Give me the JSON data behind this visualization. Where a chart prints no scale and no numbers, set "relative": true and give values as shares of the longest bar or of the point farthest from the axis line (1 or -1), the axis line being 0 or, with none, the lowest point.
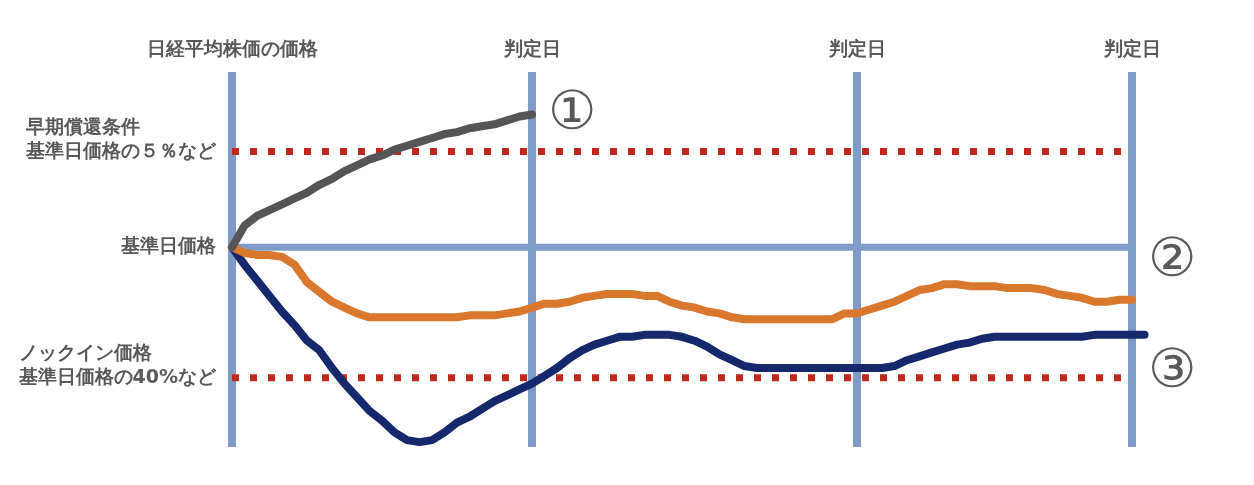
{
  "chart_data": {
    "type": "line",
    "relative": true,
    "ylabel": "日経平均株価の価格",
    "legend": false,
    "marker": "none",
    "grid": "x",
    "categories": [
      null,
      null,
      null,
      null,
      null,
      null,
      null,
      null,
      null,
      null,
      null,
      null,
      null,
      null,
      null,
      null,
      null,
      null,
      null,
      null,
      null,
      null,
      null,
      null,
      "判定日",
      null,
      null,
      null,
      null,
      null,
      null,
      null,
      null,
      null,
      null,
      null,
      null,
      null,
      null,
      null,
      null,
      null,
      null,
      null,
      null,
      null,
      null,
      null,
      null,
      null,
      "判定日",
      null,
      null,
      null,
      null,
      null,
      null,
      null,
      null,
      null,
      null,
      null,
      null,
      null,
      null,
      null,
      null,
      null,
      null,
      null,
      null,
      null,
      "判定日",
      null
    ],
    "series": [
      {
        "name": "①",
        "color": "#555555",
        "values": [
          0,
          0.11,
          0.16,
          0.19,
          0.22,
          0.25,
          0.28,
          0.32,
          0.35,
          0.39,
          0.42,
          0.45,
          0.47,
          0.5,
          0.52,
          0.54,
          0.56,
          0.58,
          0.59,
          0.61,
          0.62,
          0.63,
          0.65,
          0.67,
          0.68,
          null,
          null,
          null,
          null,
          null,
          null,
          null,
          null,
          null,
          null,
          null,
          null,
          null,
          null,
          null,
          null,
          null,
          null,
          null,
          null,
          null,
          null,
          null,
          null,
          null,
          null,
          null,
          null,
          null,
          null,
          null,
          null,
          null,
          null,
          null,
          null,
          null,
          null,
          null,
          null,
          null,
          null,
          null,
          null,
          null,
          null,
          null,
          null,
          null
        ]
      },
      {
        "name": "②",
        "color": "#d9782d",
        "values": [
          0,
          -0.03,
          -0.04,
          -0.04,
          -0.05,
          -0.09,
          -0.18,
          -0.23,
          -0.28,
          -0.31,
          -0.34,
          -0.36,
          -0.36,
          -0.36,
          -0.36,
          -0.36,
          -0.36,
          -0.36,
          -0.36,
          -0.35,
          -0.35,
          -0.35,
          -0.34,
          -0.33,
          -0.31,
          -0.29,
          -0.29,
          -0.28,
          -0.26,
          -0.25,
          -0.24,
          -0.24,
          -0.24,
          -0.25,
          -0.25,
          -0.28,
          -0.3,
          -0.31,
          -0.33,
          -0.34,
          -0.36,
          -0.37,
          -0.37,
          -0.37,
          -0.37,
          -0.37,
          -0.37,
          -0.37,
          -0.37,
          -0.34,
          -0.34,
          -0.32,
          -0.3,
          -0.28,
          -0.25,
          -0.22,
          -0.21,
          -0.19,
          -0.19,
          -0.2,
          -0.2,
          -0.2,
          -0.21,
          -0.21,
          -0.21,
          -0.22,
          -0.24,
          -0.25,
          -0.26,
          -0.28,
          -0.28,
          -0.27,
          -0.27,
          null
        ]
      },
      {
        "name": "③",
        "color": "#14286b",
        "values": [
          0,
          -0.09,
          -0.17,
          -0.25,
          -0.33,
          -0.4,
          -0.48,
          -0.53,
          -0.62,
          -0.7,
          -0.77,
          -0.84,
          -0.89,
          -0.95,
          -0.99,
          -1,
          -0.99,
          -0.95,
          -0.9,
          -0.87,
          -0.83,
          -0.79,
          -0.76,
          -0.73,
          -0.7,
          -0.66,
          -0.62,
          -0.57,
          -0.53,
          -0.5,
          -0.48,
          -0.46,
          -0.46,
          -0.45,
          -0.45,
          -0.45,
          -0.46,
          -0.48,
          -0.51,
          -0.55,
          -0.58,
          -0.61,
          -0.62,
          -0.62,
          -0.62,
          -0.62,
          -0.62,
          -0.62,
          -0.62,
          -0.62,
          -0.62,
          -0.62,
          -0.62,
          -0.61,
          -0.58,
          -0.56,
          -0.54,
          -0.52,
          -0.5,
          -0.49,
          -0.47,
          -0.46,
          -0.46,
          -0.46,
          -0.46,
          -0.46,
          -0.46,
          -0.46,
          -0.46,
          -0.45,
          -0.45,
          -0.45,
          -0.45,
          -0.45
        ]
      }
    ],
    "ref_lines": [
      {
        "axis": "y",
        "value": 0.49,
        "label": "基準日価格の５％など",
        "color": "#c0281e",
        "line_style": "dotted"
      },
      {
        "axis": "y",
        "value": 0,
        "label": "基準日価格",
        "color": "#7f9cc9"
      },
      {
        "axis": "y",
        "value": -0.67,
        "label": "基準日価格の40%など",
        "color": "#c0281e",
        "line_style": "dotted"
      }
    ],
    "annotations": [
      "早期償還条件",
      "ノックイン価格"
    ]
  }
}
